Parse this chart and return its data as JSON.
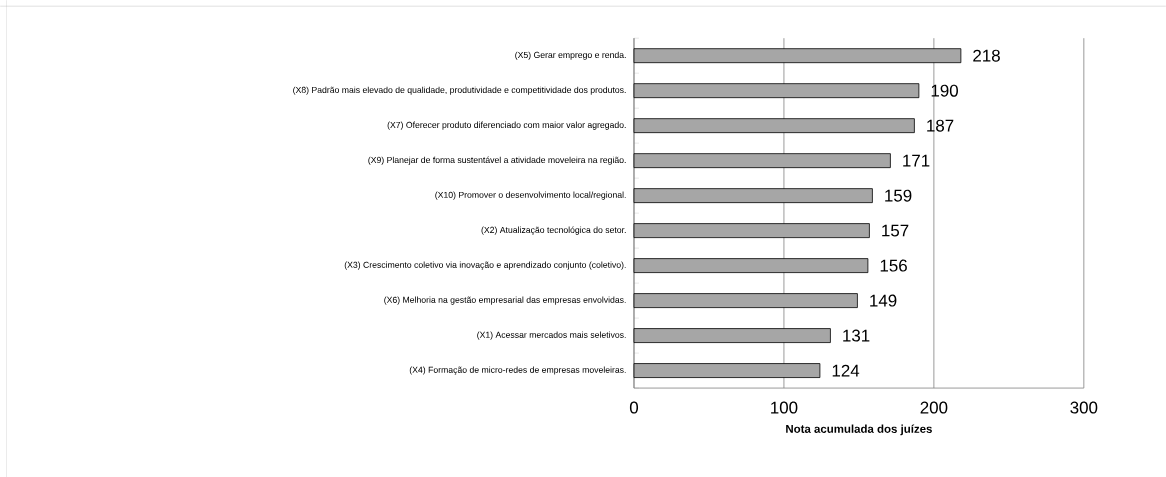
{
  "chart_data": {
    "type": "bar",
    "orientation": "horizontal",
    "xlabel": "Nota acumulada dos juízes",
    "categories": [
      "(X5) Gerar emprego e renda.",
      "(X8) Padrão mais elevado de qualidade, produtividade e competitividade dos produtos.",
      "(X7) Oferecer produto diferenciado com maior valor agregado.",
      "(X9) Planejar de forma sustentável a atividade moveleira na região.",
      "(X10) Promover o desenvolvimento local/regional.",
      "(X2) Atualização tecnológica do setor.",
      "(X3) Crescimento coletivo via inovação e aprendizado conjunto (coletivo).",
      "(X6) Melhoria na gestão empresarial das empresas envolvidas.",
      "(X1) Acessar mercados mais seletivos.",
      "(X4) Formação de micro-redes de empresas moveleiras."
    ],
    "values": [
      218,
      190,
      187,
      171,
      159,
      157,
      156,
      149,
      131,
      124
    ],
    "color": "#a6a6a6",
    "xlim": [
      0,
      300
    ],
    "xticks": [
      0,
      100,
      200,
      300
    ],
    "grid": "x",
    "data_labels": true
  }
}
